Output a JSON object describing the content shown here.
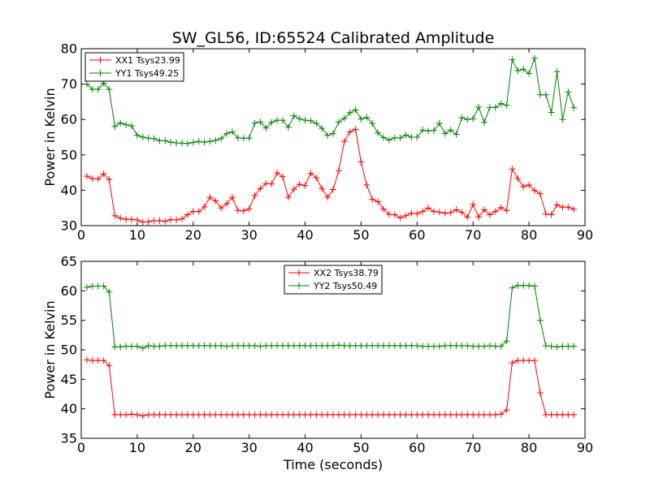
{
  "chart_data": [
    {
      "type": "line",
      "title": "SW_GL56, ID:65524 Calibrated Amplitude",
      "xlabel": "",
      "ylabel": "Power in Kelvin",
      "xlim": [
        0,
        90
      ],
      "ylim": [
        30,
        80
      ],
      "xticks": [
        0,
        10,
        20,
        30,
        40,
        50,
        60,
        70,
        80,
        90
      ],
      "yticks": [
        30,
        40,
        50,
        60,
        70,
        80
      ],
      "legend_position": "top-left",
      "series": [
        {
          "name": "XX1 Tsys23.99",
          "color": "#ff0000",
          "x": [
            1,
            2,
            3,
            4,
            5,
            6,
            7,
            8,
            9,
            10,
            11,
            12,
            13,
            14,
            15,
            16,
            17,
            18,
            19,
            20,
            21,
            22,
            23,
            24,
            25,
            26,
            27,
            28,
            29,
            30,
            31,
            32,
            33,
            34,
            35,
            36,
            37,
            38,
            39,
            40,
            41,
            42,
            43,
            44,
            45,
            46,
            47,
            48,
            49,
            50,
            51,
            52,
            53,
            54,
            55,
            56,
            57,
            58,
            59,
            60,
            61,
            62,
            63,
            64,
            65,
            66,
            67,
            68,
            69,
            70,
            71,
            72,
            73,
            74,
            75,
            76,
            77,
            78,
            79,
            80,
            81,
            82,
            83,
            84,
            85,
            86,
            87,
            88
          ],
          "y": [
            44.0,
            43.3,
            43.2,
            44.6,
            43.0,
            32.8,
            32.1,
            31.8,
            31.8,
            31.6,
            31.0,
            31.1,
            31.4,
            31.4,
            31.2,
            31.7,
            31.6,
            31.9,
            33.1,
            34.0,
            34.0,
            35.3,
            38.0,
            37.0,
            35.0,
            36.2,
            38.0,
            34.3,
            34.2,
            34.7,
            38.5,
            40.5,
            41.9,
            41.8,
            44.9,
            43.8,
            38.0,
            40.3,
            41.7,
            41.3,
            44.8,
            43.5,
            40.5,
            38.0,
            40.2,
            45.5,
            53.8,
            56.5,
            57.2,
            48.0,
            41.5,
            37.4,
            36.8,
            34.7,
            33.2,
            33.1,
            32.2,
            32.8,
            33.5,
            33.4,
            34.0,
            35.0,
            34.0,
            33.8,
            33.5,
            33.7,
            34.5,
            33.8,
            32.4,
            36.0,
            32.4,
            34.5,
            33.1,
            34.0,
            35.1,
            34.3,
            46.0,
            43.3,
            41.0,
            41.5,
            39.9,
            39.0,
            33.3,
            33.1,
            35.9,
            35.2,
            35.2,
            34.6
          ]
        },
        {
          "name": "YY1 Tsys49.25",
          "color": "#008000",
          "x": [
            1,
            2,
            3,
            4,
            5,
            6,
            7,
            8,
            9,
            10,
            11,
            12,
            13,
            14,
            15,
            16,
            17,
            18,
            19,
            20,
            21,
            22,
            23,
            24,
            25,
            26,
            27,
            28,
            29,
            30,
            31,
            32,
            33,
            34,
            35,
            36,
            37,
            38,
            39,
            40,
            41,
            42,
            43,
            44,
            45,
            46,
            47,
            48,
            49,
            50,
            51,
            52,
            53,
            54,
            55,
            56,
            57,
            58,
            59,
            60,
            61,
            62,
            63,
            64,
            65,
            66,
            67,
            68,
            69,
            70,
            71,
            72,
            73,
            74,
            75,
            76,
            77,
            78,
            79,
            80,
            81,
            82,
            83,
            84,
            85,
            86,
            87,
            88
          ],
          "y": [
            70.0,
            68.5,
            68.5,
            70.3,
            68.5,
            58.0,
            59.0,
            58.5,
            58.2,
            55.5,
            55.0,
            54.7,
            54.6,
            54.0,
            54.0,
            53.6,
            53.4,
            53.3,
            53.2,
            53.5,
            53.8,
            53.6,
            53.8,
            54.1,
            54.6,
            56.0,
            56.5,
            54.8,
            54.7,
            54.7,
            59.0,
            59.3,
            57.6,
            59.2,
            59.8,
            59.8,
            57.8,
            61.0,
            60.2,
            59.8,
            59.6,
            58.9,
            57.5,
            55.5,
            56.0,
            59.3,
            60.3,
            61.9,
            62.7,
            60.1,
            60.6,
            58.9,
            56.2,
            54.9,
            54.2,
            54.8,
            54.8,
            55.6,
            55.0,
            55.0,
            57.0,
            56.8,
            56.9,
            58.9,
            56.0,
            57.0,
            55.8,
            60.5,
            60.0,
            60.2,
            63.5,
            59.2,
            63.4,
            63.4,
            64.5,
            64.0,
            76.9,
            73.8,
            74.2,
            73.0,
            77.3,
            67.0,
            67.0,
            62.0,
            73.5,
            60.0,
            67.8,
            63.3
          ]
        }
      ]
    },
    {
      "type": "line",
      "title": "",
      "xlabel": "Time (seconds)",
      "ylabel": "Power in Kelvin",
      "xlim": [
        0,
        90
      ],
      "ylim": [
        35,
        65
      ],
      "xticks": [
        0,
        10,
        20,
        30,
        40,
        50,
        60,
        70,
        80,
        90
      ],
      "yticks": [
        35,
        40,
        45,
        50,
        55,
        60,
        65
      ],
      "legend_position": "top-center",
      "series": [
        {
          "name": "XX2 Tsys38.79",
          "color": "#ff0000",
          "x": [
            1,
            2,
            3,
            4,
            5,
            6,
            7,
            8,
            9,
            10,
            11,
            12,
            13,
            14,
            15,
            16,
            17,
            18,
            19,
            20,
            21,
            22,
            23,
            24,
            25,
            26,
            27,
            28,
            29,
            30,
            31,
            32,
            33,
            34,
            35,
            36,
            37,
            38,
            39,
            40,
            41,
            42,
            43,
            44,
            45,
            46,
            47,
            48,
            49,
            50,
            51,
            52,
            53,
            54,
            55,
            56,
            57,
            58,
            59,
            60,
            61,
            62,
            63,
            64,
            65,
            66,
            67,
            68,
            69,
            70,
            71,
            72,
            73,
            74,
            75,
            76,
            77,
            78,
            79,
            80,
            81,
            82,
            83,
            84,
            85,
            86,
            87,
            88
          ],
          "y": [
            48.3,
            48.2,
            48.2,
            48.2,
            47.3,
            39.0,
            39.0,
            39.0,
            39.1,
            39.0,
            38.8,
            39.0,
            39.0,
            39.0,
            39.0,
            39.0,
            39.0,
            39.0,
            39.0,
            39.0,
            39.0,
            39.0,
            39.0,
            39.0,
            39.0,
            39.0,
            39.0,
            39.0,
            39.0,
            39.0,
            39.0,
            39.0,
            39.0,
            39.0,
            39.0,
            39.0,
            39.0,
            39.0,
            39.0,
            39.0,
            39.0,
            39.0,
            39.0,
            39.0,
            39.0,
            39.0,
            39.0,
            39.0,
            39.0,
            39.0,
            39.0,
            39.0,
            39.0,
            39.0,
            39.0,
            39.0,
            39.0,
            39.0,
            39.0,
            39.0,
            39.0,
            39.0,
            39.0,
            39.0,
            39.0,
            39.0,
            39.0,
            39.0,
            39.0,
            39.0,
            39.0,
            39.0,
            39.0,
            39.0,
            39.1,
            39.8,
            47.8,
            48.2,
            48.2,
            48.2,
            48.2,
            42.7,
            39.0,
            39.0,
            39.0,
            39.0,
            39.0,
            39.0
          ]
        },
        {
          "name": "YY2 Tsys50.49",
          "color": "#008000",
          "x": [
            1,
            2,
            3,
            4,
            5,
            6,
            7,
            8,
            9,
            10,
            11,
            12,
            13,
            14,
            15,
            16,
            17,
            18,
            19,
            20,
            21,
            22,
            23,
            24,
            25,
            26,
            27,
            28,
            29,
            30,
            31,
            32,
            33,
            34,
            35,
            36,
            37,
            38,
            39,
            40,
            41,
            42,
            43,
            44,
            45,
            46,
            47,
            48,
            49,
            50,
            51,
            52,
            53,
            54,
            55,
            56,
            57,
            58,
            59,
            60,
            61,
            62,
            63,
            64,
            65,
            66,
            67,
            68,
            69,
            70,
            71,
            72,
            73,
            74,
            75,
            76,
            77,
            78,
            79,
            80,
            81,
            82,
            83,
            84,
            85,
            86,
            87,
            88
          ],
          "y": [
            60.6,
            60.8,
            60.8,
            60.8,
            59.8,
            50.5,
            50.5,
            50.6,
            50.6,
            50.6,
            50.3,
            50.7,
            50.6,
            50.6,
            50.7,
            50.7,
            50.7,
            50.7,
            50.7,
            50.7,
            50.7,
            50.7,
            50.7,
            50.7,
            50.7,
            50.6,
            50.7,
            50.7,
            50.7,
            50.7,
            50.7,
            50.6,
            50.7,
            50.7,
            50.7,
            50.7,
            50.7,
            50.7,
            50.7,
            50.7,
            50.7,
            50.7,
            50.7,
            50.7,
            50.7,
            50.8,
            50.7,
            50.7,
            50.7,
            50.7,
            50.7,
            50.7,
            50.7,
            50.7,
            50.7,
            50.7,
            50.7,
            50.7,
            50.7,
            50.7,
            50.6,
            50.6,
            50.6,
            50.6,
            50.7,
            50.7,
            50.7,
            50.7,
            50.7,
            50.6,
            50.6,
            50.6,
            50.7,
            50.6,
            50.6,
            51.5,
            60.5,
            60.9,
            60.9,
            60.9,
            60.8,
            55.0,
            50.7,
            50.6,
            50.5,
            50.6,
            50.6,
            50.6
          ]
        }
      ]
    }
  ]
}
